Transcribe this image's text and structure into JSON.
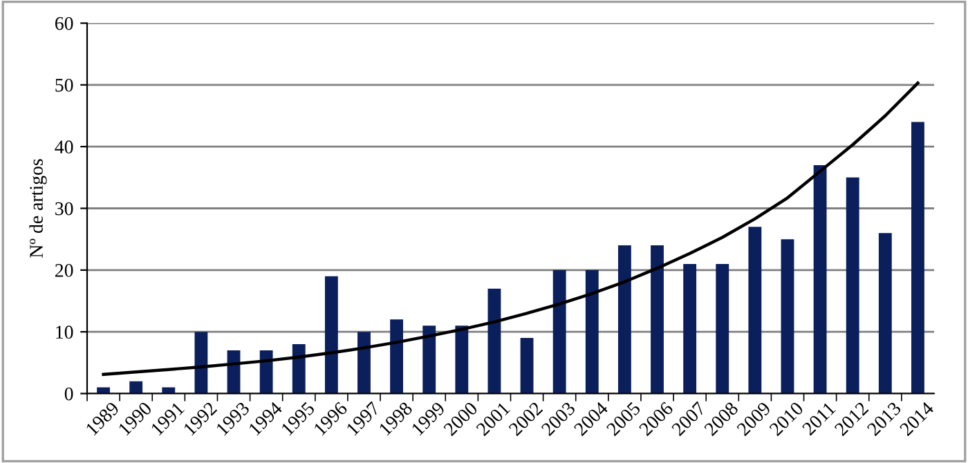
{
  "chart_data": {
    "type": "bar",
    "ylabel": "Nº de artigos",
    "categories": [
      "1989",
      "1990",
      "1991",
      "1992",
      "1993",
      "1994",
      "1995",
      "1996",
      "1997",
      "1998",
      "1999",
      "2000",
      "2001",
      "2002",
      "2003",
      "2004",
      "2005",
      "2006",
      "2007",
      "2008",
      "2009",
      "2010",
      "2011",
      "2012",
      "2013",
      "2014"
    ],
    "series": [
      {
        "color": "#0b1f5c",
        "values": [
          1,
          2,
          1,
          10,
          7,
          7,
          8,
          19,
          10,
          12,
          11,
          11,
          17,
          9,
          20,
          20,
          24,
          24,
          21,
          21,
          27,
          25,
          37,
          35,
          26,
          44
        ]
      },
      {
        "type": "line",
        "color": "#000000",
        "values": [
          3.1,
          3.5,
          3.9,
          4.3,
          4.8,
          5.3,
          5.9,
          6.6,
          7.4,
          8.3,
          9.3,
          10.4,
          11.6,
          13.0,
          14.5,
          16.2,
          18.1,
          20.3,
          22.7,
          25.3,
          28.3,
          31.7,
          36.0,
          40.3,
          45.0,
          50.3
        ]
      }
    ],
    "ylim": [
      0,
      60
    ],
    "yticks": [
      0,
      10,
      20,
      30,
      40,
      50,
      60
    ],
    "grid": "y",
    "legend": false
  }
}
